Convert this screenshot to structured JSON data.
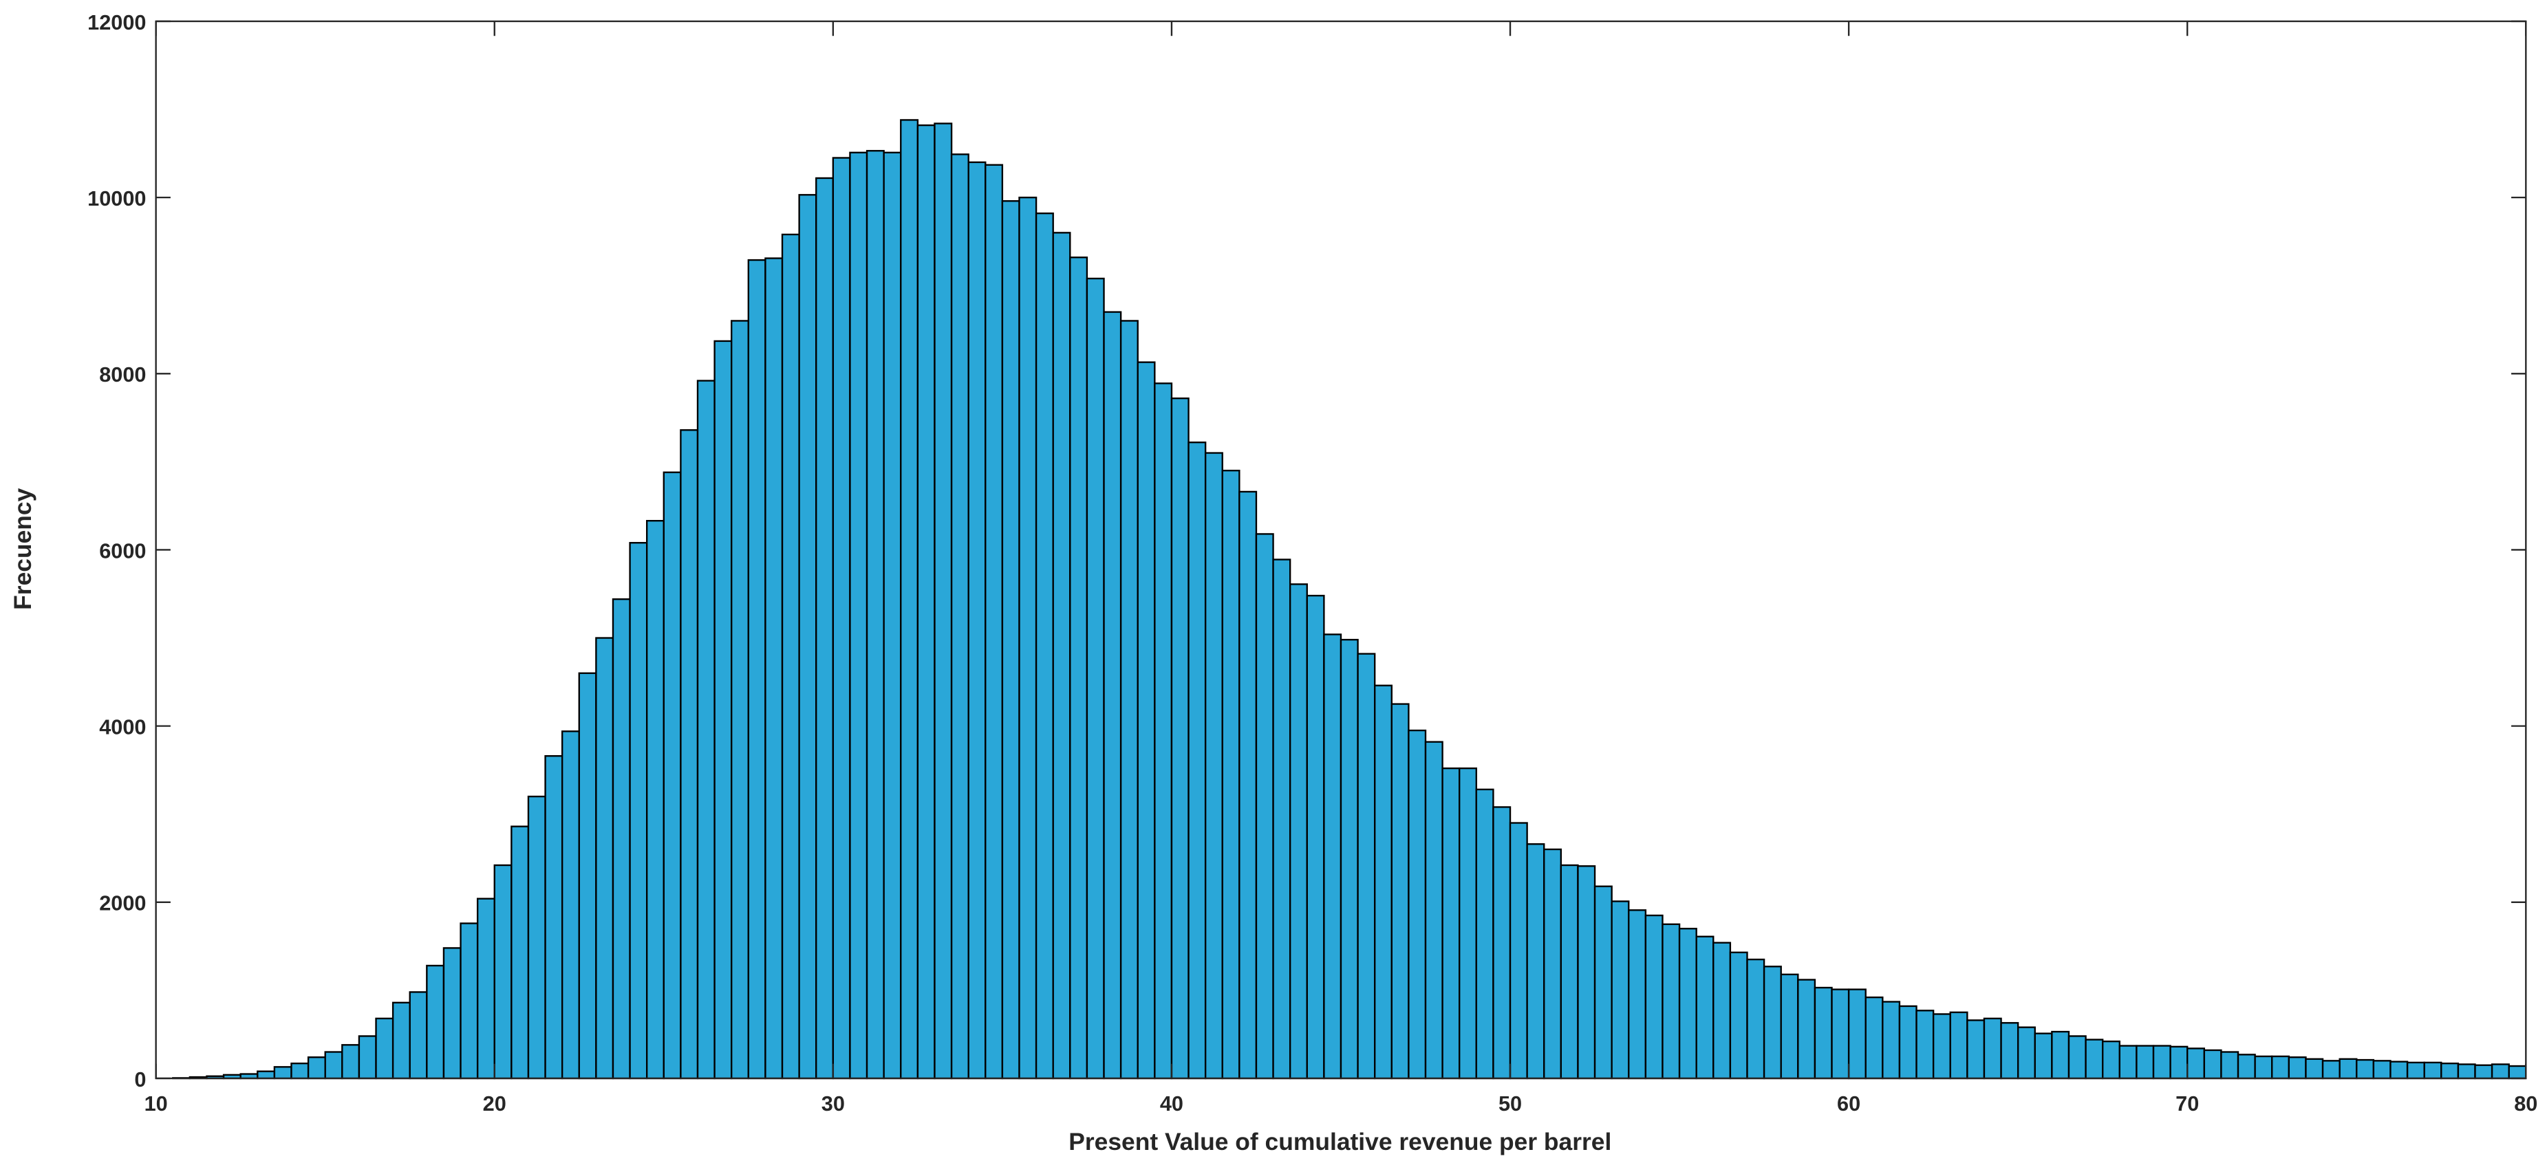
{
  "chart_data": {
    "type": "histogram",
    "xlabel": "Present Value of cumulative revenue per barrel",
    "ylabel": "Frecuency",
    "color": "#2aa7d8",
    "edgecolor": "#000000",
    "bins": [
      10,
      10.5,
      11,
      11.5,
      12,
      12.5,
      13,
      13.5,
      14,
      14.5,
      15,
      15.5,
      16,
      16.5,
      17,
      17.5,
      18,
      18.5,
      19,
      19.5,
      20,
      20.5,
      21,
      21.5,
      22,
      22.5,
      23,
      23.5,
      24,
      24.5,
      25,
      25.5,
      26,
      26.5,
      27,
      27.5,
      28,
      28.5,
      29,
      29.5,
      30,
      30.5,
      31,
      31.5,
      32,
      32.5,
      33,
      33.5,
      34,
      34.5,
      35,
      35.5,
      36,
      36.5,
      37,
      37.5,
      38,
      38.5,
      39,
      39.5,
      40,
      40.5,
      41,
      41.5,
      42,
      42.5,
      43,
      43.5,
      44,
      44.5,
      45,
      45.5,
      46,
      46.5,
      47,
      47.5,
      48,
      48.5,
      49,
      49.5,
      50,
      50.5,
      51,
      51.5,
      52,
      52.5,
      53,
      53.5,
      54,
      54.5,
      55,
      55.5,
      56,
      56.5,
      57,
      57.5,
      58,
      58.5,
      59,
      59.5,
      60,
      60.5,
      61,
      61.5,
      62,
      62.5,
      63,
      63.5,
      64,
      64.5,
      65,
      65.5,
      66,
      66.5,
      67,
      67.5,
      68,
      68.5,
      69,
      69.5,
      70,
      70.5,
      71,
      71.5,
      72,
      72.5,
      73,
      73.5,
      74,
      74.5,
      75,
      75.5,
      76,
      76.5,
      77,
      77.5,
      78,
      78.5,
      79,
      79.5,
      80
    ],
    "values": [
      0,
      5,
      15,
      25,
      40,
      50,
      80,
      130,
      170,
      240,
      300,
      380,
      480,
      680,
      860,
      980,
      1280,
      1480,
      1760,
      2040,
      2420,
      2860,
      3200,
      3660,
      3940,
      4600,
      5000,
      5440,
      6080,
      6330,
      6880,
      7360,
      7920,
      8370,
      8600,
      9290,
      9310,
      9580,
      10030,
      10220,
      10450,
      10510,
      10530,
      10510,
      10880,
      10820,
      10840,
      10490,
      10400,
      10370,
      9960,
      10000,
      9820,
      9600,
      9320,
      9080,
      8700,
      8600,
      8130,
      7890,
      7720,
      7220,
      7100,
      6900,
      6660,
      6180,
      5890,
      5610,
      5480,
      5040,
      4980,
      4820,
      4460,
      4250,
      3950,
      3820,
      3520,
      3520,
      3280,
      3080,
      2900,
      2660,
      2600,
      2420,
      2410,
      2180,
      2010,
      1910,
      1850,
      1750,
      1700,
      1610,
      1540,
      1430,
      1350,
      1270,
      1180,
      1120,
      1030,
      1010,
      1010,
      920,
      870,
      820,
      770,
      730,
      750,
      660,
      680,
      630,
      580,
      510,
      530,
      480,
      440,
      420,
      370,
      370,
      370,
      360,
      340,
      320,
      300,
      270,
      250,
      250,
      240,
      220,
      200,
      220,
      210,
      200,
      190,
      180,
      180,
      170,
      160,
      150,
      160,
      140
    ],
    "xlim": [
      10,
      80
    ],
    "xticks": [
      10,
      20,
      30,
      40,
      50,
      60,
      70,
      80
    ],
    "ylim": [
      0,
      12000
    ],
    "yticks": [
      0,
      2000,
      4000,
      6000,
      8000,
      10000,
      12000
    ]
  }
}
